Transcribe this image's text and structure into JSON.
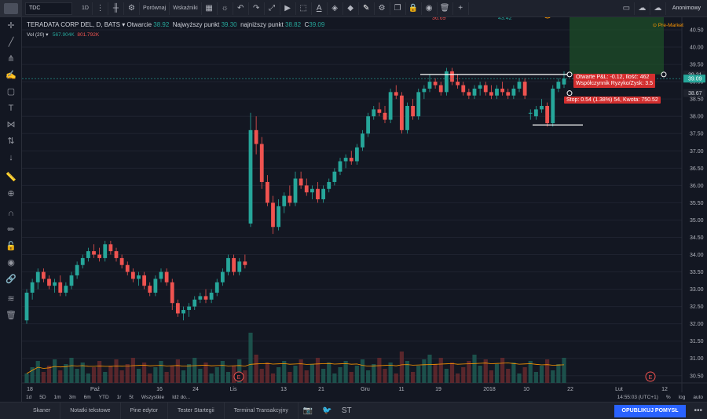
{
  "toolbar": {
    "symbol": "TDC",
    "interval": "1D",
    "compare": "Porównaj",
    "indicators": "Wskaźniki",
    "user": "Anonimowy"
  },
  "legend": {
    "name": "TERADATA CORP DEL, D, BATS",
    "open_label": "Otwarcie",
    "open": "38.92",
    "high_label": "Najwyższy punkt",
    "high": "39.30",
    "low_label": "najniższy punkt",
    "low": "38.82",
    "close_label": "C",
    "close": "39.09",
    "vol_label": "Vol (20)",
    "vol1": "567.904K",
    "vol2": "801.792K",
    "premarket": "Pre-Market"
  },
  "top_values": [
    "36.69",
    "43.42"
  ],
  "position_tool": {
    "pnl_line1": "Otwarte P&L: -0.12, Ilość: 462",
    "pnl_line2": "Współczynnik Ryzyko/Zysk: 3.5",
    "stop_text": "Stop: 0.54 (1.38%) 54, Kwota: 750.52",
    "price_tag_top": "39.21",
    "price_tag_cur": "39.09",
    "price_tag_stop": "38.67"
  },
  "chart_data": {
    "type": "candlestick",
    "y_ticks": [
      "40.50",
      "40.00",
      "39.50",
      "39.00",
      "38.50",
      "38.00",
      "37.50",
      "37.00",
      "36.50",
      "36.00",
      "35.50",
      "35.00",
      "34.50",
      "34.00",
      "33.50",
      "33.00",
      "32.50",
      "32.00",
      "31.50",
      "31.00",
      "30.50"
    ],
    "x_ticks": [
      "18",
      "Paź",
      "16",
      "24",
      "Lis",
      "13",
      "21",
      "Gru",
      "11",
      "19",
      "2018",
      "10",
      "22",
      "Lut",
      "12"
    ],
    "events": [
      "E",
      "E"
    ],
    "candles": [
      [
        32.1,
        33.0,
        32.0,
        32.9
      ],
      [
        32.9,
        33.3,
        32.7,
        33.2
      ],
      [
        33.2,
        33.6,
        33.0,
        33.5
      ],
      [
        33.5,
        33.6,
        33.2,
        33.3
      ],
      [
        33.3,
        33.4,
        33.0,
        33.1
      ],
      [
        33.1,
        33.3,
        32.9,
        33.2
      ],
      [
        33.2,
        33.4,
        32.8,
        32.9
      ],
      [
        32.9,
        33.2,
        32.8,
        33.1
      ],
      [
        33.1,
        33.5,
        33.0,
        33.4
      ],
      [
        33.4,
        33.8,
        33.3,
        33.7
      ],
      [
        33.7,
        34.0,
        33.6,
        33.9
      ],
      [
        33.9,
        34.2,
        33.8,
        34.1
      ],
      [
        34.1,
        34.3,
        33.9,
        34.0
      ],
      [
        34.0,
        34.2,
        33.8,
        33.9
      ],
      [
        33.9,
        34.4,
        33.8,
        34.3
      ],
      [
        34.3,
        34.4,
        34.0,
        34.1
      ],
      [
        34.1,
        34.2,
        33.8,
        33.9
      ],
      [
        33.9,
        34.0,
        33.6,
        33.7
      ],
      [
        33.7,
        33.8,
        33.4,
        33.5
      ],
      [
        33.5,
        33.6,
        33.2,
        33.3
      ],
      [
        33.3,
        33.5,
        33.1,
        33.4
      ],
      [
        33.4,
        33.5,
        33.0,
        33.1
      ],
      [
        33.1,
        33.2,
        32.8,
        32.9
      ],
      [
        32.9,
        33.4,
        32.8,
        33.3
      ],
      [
        33.3,
        33.6,
        33.2,
        33.5
      ],
      [
        33.5,
        33.6,
        33.1,
        33.2
      ],
      [
        33.2,
        33.3,
        32.4,
        32.6
      ],
      [
        32.6,
        32.7,
        32.2,
        32.3
      ],
      [
        32.3,
        32.5,
        32.1,
        32.4
      ],
      [
        32.4,
        32.6,
        32.2,
        32.5
      ],
      [
        32.5,
        32.8,
        32.4,
        32.7
      ],
      [
        32.7,
        32.9,
        32.6,
        32.8
      ],
      [
        32.8,
        33.0,
        32.6,
        32.7
      ],
      [
        32.7,
        33.0,
        32.6,
        32.9
      ],
      [
        32.9,
        33.3,
        32.8,
        33.2
      ],
      [
        33.2,
        33.6,
        33.1,
        33.5
      ],
      [
        33.5,
        34.0,
        33.4,
        33.9
      ],
      [
        33.9,
        34.0,
        33.4,
        33.5
      ],
      [
        33.5,
        33.9,
        33.4,
        33.8
      ],
      [
        33.8,
        34.0,
        33.6,
        33.7
      ],
      [
        34.9,
        38.1,
        34.8,
        37.6
      ],
      [
        37.6,
        38.0,
        36.9,
        37.2
      ],
      [
        37.2,
        37.4,
        35.9,
        36.1
      ],
      [
        36.1,
        36.3,
        35.4,
        35.5
      ],
      [
        35.5,
        35.7,
        34.6,
        34.8
      ],
      [
        34.8,
        35.6,
        34.7,
        35.4
      ],
      [
        35.4,
        35.8,
        35.2,
        35.7
      ],
      [
        35.7,
        36.0,
        35.4,
        35.5
      ],
      [
        35.5,
        36.4,
        35.4,
        36.2
      ],
      [
        36.2,
        36.4,
        35.9,
        36.0
      ],
      [
        36.0,
        36.2,
        35.7,
        35.8
      ],
      [
        35.8,
        36.0,
        35.6,
        35.9
      ],
      [
        35.9,
        36.1,
        35.5,
        35.6
      ],
      [
        35.6,
        36.0,
        35.5,
        35.9
      ],
      [
        35.9,
        36.2,
        35.8,
        36.1
      ],
      [
        36.1,
        36.5,
        36.0,
        36.4
      ],
      [
        36.4,
        36.8,
        36.3,
        36.7
      ],
      [
        36.7,
        36.9,
        36.5,
        36.8
      ],
      [
        36.8,
        37.0,
        36.6,
        36.7
      ],
      [
        36.7,
        37.2,
        36.6,
        37.1
      ],
      [
        37.1,
        37.6,
        37.0,
        37.5
      ],
      [
        37.5,
        38.1,
        37.4,
        38.0
      ],
      [
        38.0,
        38.3,
        37.9,
        38.2
      ],
      [
        38.2,
        38.4,
        38.0,
        38.1
      ],
      [
        38.1,
        38.3,
        37.8,
        37.9
      ],
      [
        37.9,
        38.8,
        37.8,
        38.7
      ],
      [
        38.7,
        38.9,
        38.5,
        38.6
      ],
      [
        38.6,
        38.7,
        37.5,
        37.6
      ],
      [
        37.6,
        38.4,
        37.5,
        38.3
      ],
      [
        38.3,
        38.5,
        37.9,
        38.0
      ],
      [
        38.0,
        38.8,
        37.9,
        38.7
      ],
      [
        38.7,
        38.9,
        38.5,
        38.8
      ],
      [
        38.8,
        39.2,
        38.7,
        39.0
      ],
      [
        39.0,
        39.1,
        38.8,
        38.9
      ],
      [
        38.9,
        39.0,
        38.6,
        38.7
      ],
      [
        38.7,
        39.4,
        38.6,
        39.3
      ],
      [
        39.3,
        39.4,
        38.9,
        39.0
      ],
      [
        39.0,
        39.2,
        38.8,
        38.9
      ],
      [
        38.9,
        39.0,
        38.6,
        38.7
      ],
      [
        38.7,
        38.8,
        38.5,
        38.6
      ],
      [
        38.6,
        38.9,
        38.5,
        38.8
      ],
      [
        38.8,
        39.0,
        38.6,
        38.9
      ],
      [
        38.9,
        39.0,
        38.6,
        38.7
      ],
      [
        38.7,
        38.9,
        38.5,
        38.6
      ],
      [
        38.6,
        38.9,
        38.5,
        38.8
      ],
      [
        38.8,
        39.0,
        38.6,
        38.7
      ],
      [
        38.7,
        38.8,
        38.5,
        38.6
      ],
      [
        38.6,
        38.9,
        38.5,
        38.8
      ],
      [
        38.8,
        39.1,
        38.7,
        39.0
      ],
      [
        39.0,
        39.1,
        38.5,
        38.6
      ],
      [
        38.1,
        38.2,
        37.9,
        38.1
      ],
      [
        38.0,
        38.3,
        37.9,
        38.2
      ],
      [
        38.2,
        38.5,
        38.1,
        38.3
      ],
      [
        38.3,
        38.4,
        37.7,
        37.8
      ],
      [
        37.8,
        38.9,
        37.7,
        38.8
      ],
      [
        38.8,
        39.1,
        38.7,
        39.0
      ],
      [
        38.92,
        39.3,
        38.82,
        39.09
      ]
    ]
  },
  "time_range": {
    "items": [
      "1d",
      "5D",
      "1m",
      "3m",
      "6m",
      "YTD",
      "1r",
      "5t",
      "Wszystkie",
      "Idź do..."
    ],
    "time": "14:55:03 (UTC+1)",
    "pct": "%",
    "log": "log",
    "auto": "auto"
  },
  "bottom_tabs": [
    "Skaner",
    "Notatki tekstowe",
    "Pine edytor",
    "Tester Startegii",
    "Terminal Transakcyjny"
  ],
  "publish": "OPUBLIKUJ POMYSŁ"
}
